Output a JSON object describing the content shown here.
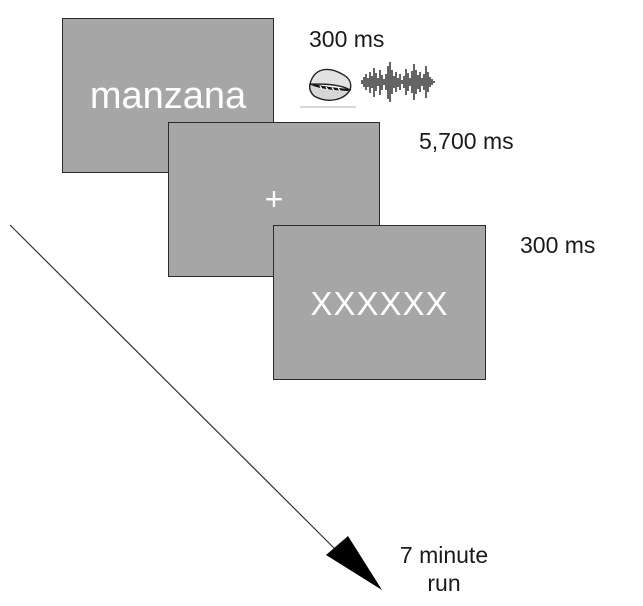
{
  "screens": [
    {
      "text": "manzana"
    },
    {
      "text": "+"
    },
    {
      "text": "XXXXXX"
    }
  ],
  "timings": [
    "300 ms",
    "5,700 ms",
    "300 ms"
  ],
  "stimulus_icons": [
    "mouth-icon",
    "audio-waveform-icon"
  ],
  "run_label": {
    "line1": "7 minute",
    "line2": "run"
  },
  "colors": {
    "screen_fill": "#a6a6a6",
    "screen_border": "#2b2b2b",
    "screen_text": "#ffffff",
    "arrow": "#000000"
  }
}
